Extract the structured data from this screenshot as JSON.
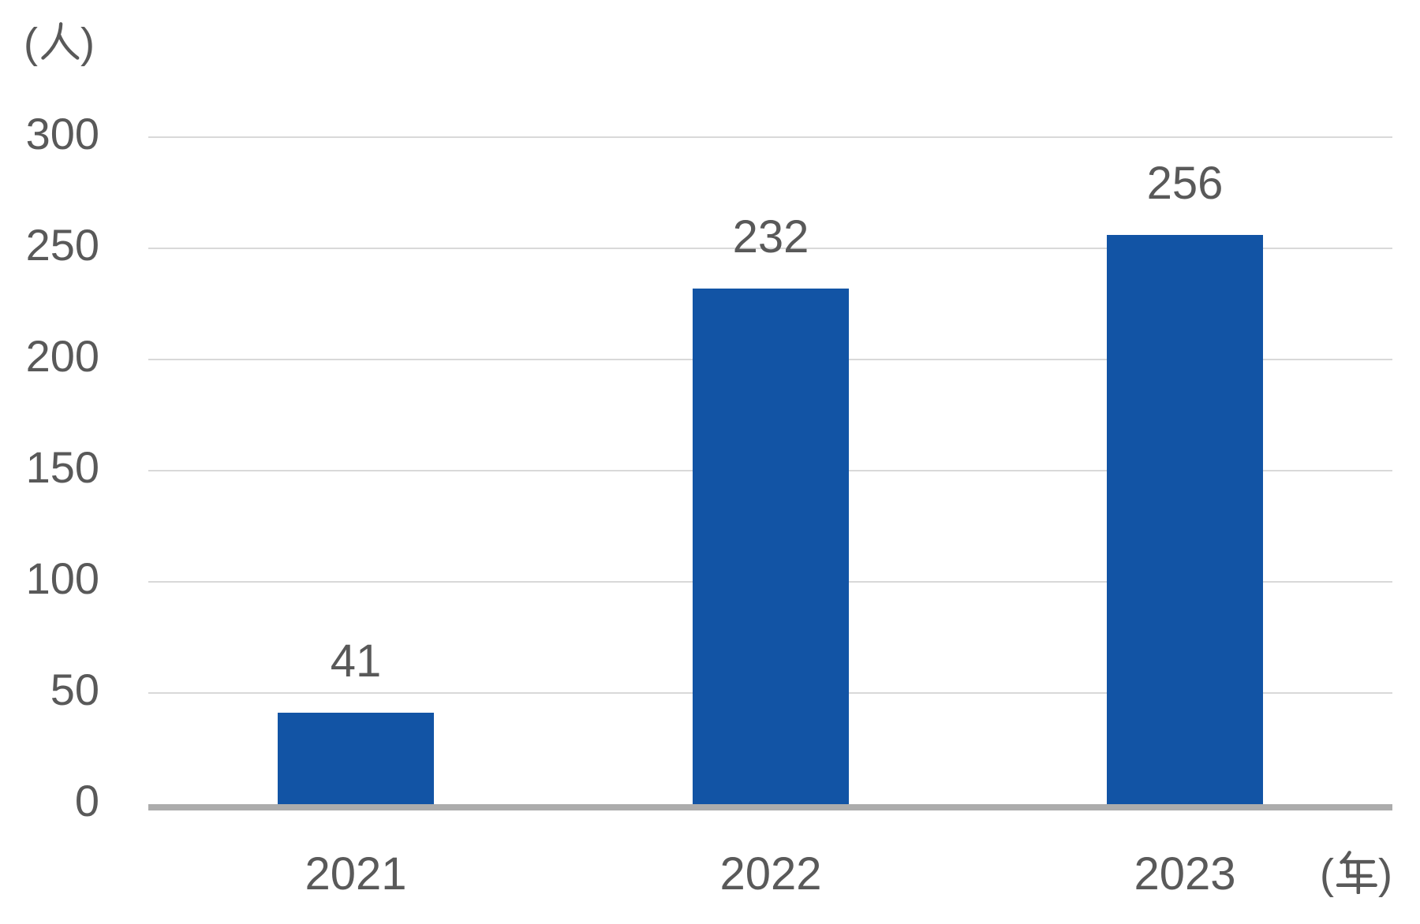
{
  "chart_data": {
    "type": "bar",
    "title": "",
    "categories": [
      "2021",
      "2022",
      "2023"
    ],
    "values": [
      41,
      232,
      256
    ],
    "data_labels": [
      "41",
      "232",
      "256"
    ],
    "y_unit": "(人)",
    "x_unit": "(年)",
    "yticks": [
      0,
      50,
      100,
      150,
      200,
      250,
      300
    ],
    "ylim": [
      0,
      300
    ],
    "grid": "horizontal-gridlines",
    "legend": "none",
    "colors": {
      "bar": "#1254A5",
      "label_text": "#595959",
      "gridline": "#D9D9D9",
      "axis_line": "#ACACAC",
      "background": "#FFFFFF"
    }
  }
}
